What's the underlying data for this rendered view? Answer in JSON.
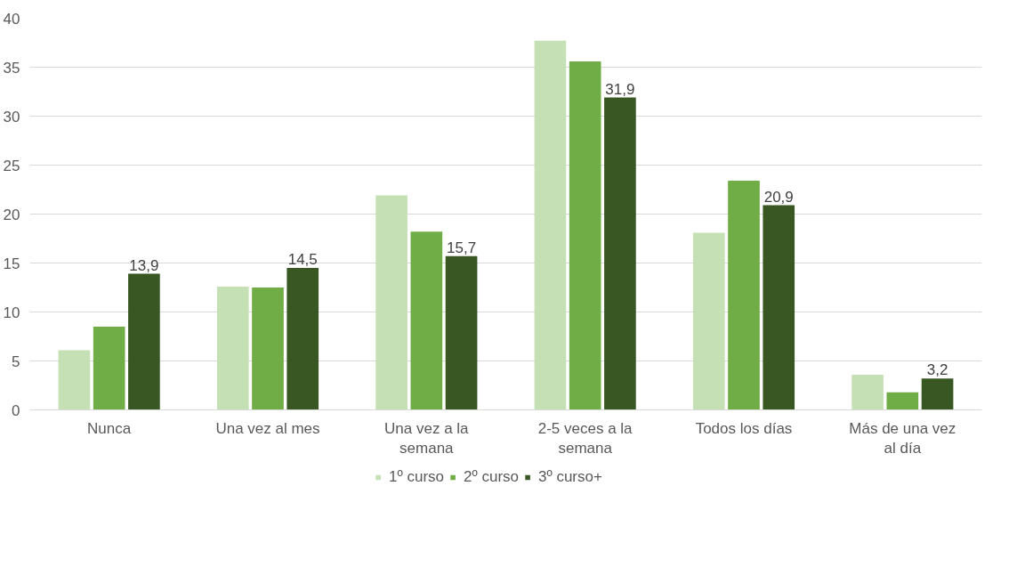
{
  "chart_data": {
    "type": "bar",
    "categories": [
      "Nunca",
      "Una vez al mes",
      "Una vez a la semana",
      "2-5 veces a la semana",
      "Todos los días",
      "Más de una vez al día"
    ],
    "series": [
      {
        "name": "1º curso",
        "color": "#c5e0b4",
        "values": [
          6.1,
          12.6,
          21.9,
          37.7,
          18.1,
          3.6
        ]
      },
      {
        "name": "2º curso",
        "color": "#70ad47",
        "values": [
          8.5,
          12.5,
          18.2,
          35.6,
          23.4,
          1.8
        ]
      },
      {
        "name": "3º curso+",
        "color": "#385723",
        "values": [
          13.9,
          14.5,
          15.7,
          31.9,
          20.9,
          3.2
        ],
        "value_labels": [
          "13,9",
          "14,5",
          "15,7",
          "31,9",
          "20,9",
          "3,2"
        ]
      }
    ],
    "ylim": [
      0,
      40
    ],
    "yticks": [
      0,
      5,
      10,
      15,
      20,
      25,
      30,
      35,
      40
    ],
    "grid": "y",
    "legend": "bottom"
  }
}
